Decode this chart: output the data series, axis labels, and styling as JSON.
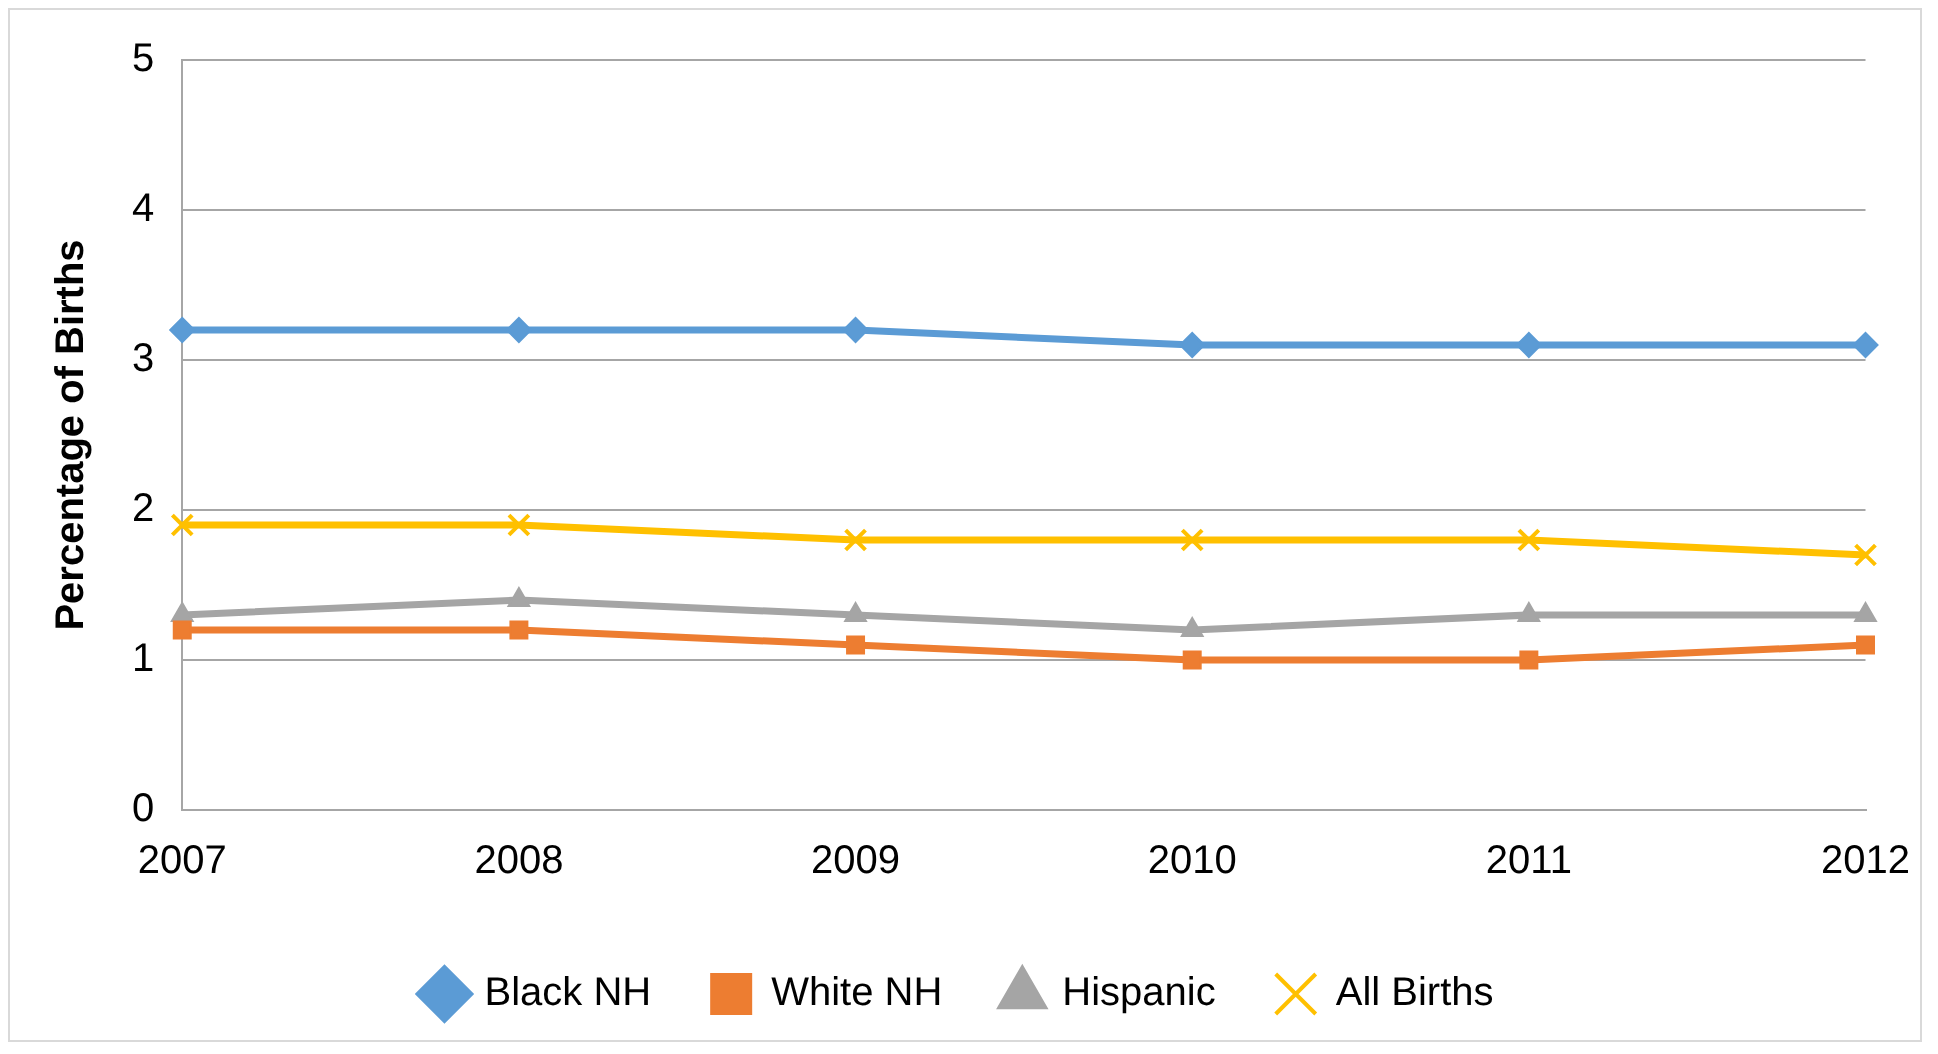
{
  "chart_data": {
    "type": "line",
    "ylabel": "Percentage of Births",
    "categories": [
      "2007",
      "2008",
      "2009",
      "2010",
      "2011",
      "2012"
    ],
    "series": [
      {
        "name": "Black NH",
        "color": "#5b9bd5",
        "marker": "diamond",
        "values": [
          3.2,
          3.2,
          3.2,
          3.1,
          3.1,
          3.1
        ]
      },
      {
        "name": "White NH",
        "color": "#ed7d31",
        "marker": "square",
        "values": [
          1.2,
          1.2,
          1.1,
          1.0,
          1.0,
          1.1
        ]
      },
      {
        "name": "Hispanic",
        "color": "#a5a5a5",
        "marker": "triangle",
        "values": [
          1.3,
          1.4,
          1.3,
          1.2,
          1.3,
          1.3
        ]
      },
      {
        "name": "All Births",
        "color": "#ffc000",
        "marker": "cross",
        "values": [
          1.9,
          1.9,
          1.8,
          1.8,
          1.8,
          1.7
        ]
      }
    ],
    "ylim": [
      0,
      5
    ],
    "yticks": [
      0,
      1,
      2,
      3,
      4,
      5
    ],
    "grid": "y",
    "legend": "bottom",
    "line_style": "solid"
  }
}
